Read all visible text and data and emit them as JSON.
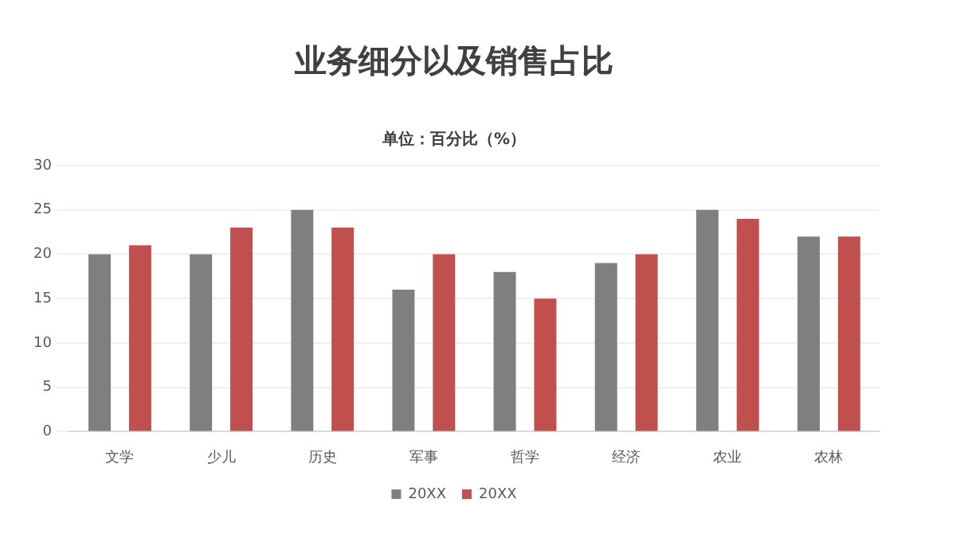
{
  "chart_data": {
    "type": "bar",
    "title": "业务细分以及销售占比",
    "subtitle": "单位：百分比（%）",
    "categories": [
      "文学",
      "少儿",
      "历史",
      "军事",
      "哲学",
      "经济",
      "农业",
      "农林"
    ],
    "series": [
      {
        "name": "20XX",
        "color": "#7f7f7f",
        "values": [
          20,
          20,
          25,
          16,
          18,
          19,
          25,
          22
        ]
      },
      {
        "name": "20XX",
        "color": "#c0504d",
        "values": [
          21,
          23,
          23,
          20,
          15,
          20,
          24,
          22
        ]
      }
    ],
    "ylim": [
      0,
      30
    ],
    "yticks": [
      0,
      5,
      10,
      15,
      20,
      25,
      30
    ],
    "grid": "y",
    "legend": "bottom"
  }
}
